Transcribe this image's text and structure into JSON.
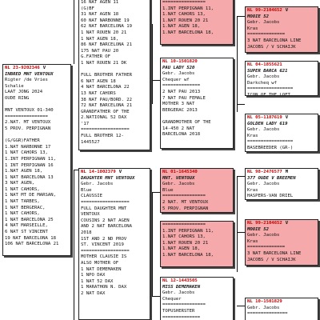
{
  "subject": {
    "ring": "NL  23-9202346 V",
    "name": "INBRED MNT VENTOUX",
    "lines": [
      "Rigter /de Vries",
      "Schalie",
      "LAAT JONG 2024",
      "OUDE RING",
      "",
      "MNT VENTOUX 01-340",
      "================",
      "2.NAT. MT VENTOUX",
      "5 PROV. PERPIGNAN",
      "",
      "(G/GGR)FATHER",
      "1.NAT NARBONNE 17",
      "1 NAT CAHORS 13,",
      "1.INT PERPIGNAN 11,",
      "1 INT PERPIGNAN 16",
      "1.NAT AGEN 18,",
      "1 NAT BARCELONA 13",
      "3 NAT AGEN,",
      "1 NAT CAHORS,",
      "1 NAT MT DE MARSAN,",
      "1 NAT TARBES,",
      "1 NAT BERGERAC,",
      "1 NAT CAHORS,",
      "1 NAT BARCELONA 25",
      "4 NAT MARSEILLE,",
      "6 NAT ST VINCENT",
      "19 NAT BARCELONA 18",
      "106 NAT BARCELONA 21"
    ]
  },
  "sire_partial": {
    "lines": [
      "16 NAT AGEN 11",
      "(G)BF",
      "31 NAT AGEN 18",
      "60 NAT NARBONNE 19",
      "62 NAT BARCELONA 19",
      "1 NAT ROUEN 20 21",
      "1 NAT AGEN 18,",
      "86 NAT BARCELONA 21",
      "175 NAT PAU 20",
      "G.FATHER OF",
      "1 NAT ROUEN 21 DK",
      "",
      "FULL BROTHER FATHER",
      "6 NAT AGEN 18",
      "4 NAT BARCELONA 22",
      "13 NAT CAHORS",
      "38 NAT PAU/BORD. 22",
      "72 NAT BARCELONA 21",
      "GRANDFATHER OF THE",
      "2.NATIONAL 52 DAX",
      "'17",
      "==================",
      "FULL BROTHER 12-",
      "1445527"
    ]
  },
  "dam": {
    "ring": "NL  14-1802379 V",
    "name": "DAUGHTER MNT VENTOUX",
    "lines": [
      "Gebr. Jacobs",
      "Blue",
      "CLAUSSIE",
      "==================",
      "FULL DAUGHTER MNT",
      "VENTOUX",
      "COUSINS 2 NAT AGEN",
      "AND 2 NAT BARCELONA",
      "2018",
      "1ST AND 2 ND PROV",
      "ST. VINCENT 2019",
      "==================",
      "MOTHER CLAUSIE IS",
      "ALSO MOTHER OF",
      "1 NAT DEMEMAKEN",
      "1 NPO DAX",
      "1 NAT 52 DAX",
      "1 MARATHON N. DAX",
      "2 NAT DAX"
    ]
  },
  "gen3_top": {
    "lines": [
      "================",
      "1.INT PERPIGNAN 11,",
      "1.NAT CAHORS 13,",
      "1.NAT ROUEN 20 21",
      "1.NAT AGEN 18,",
      "1.NAT BARCELONA 18,"
    ]
  },
  "gen3_b": {
    "ring": "NL  10-1501820",
    "name": "PAU LADY 520",
    "lines": [
      "Gebr. Jacobs",
      "Chequer wf",
      "==============",
      "2 NAT PAU 2013",
      "7 NAT PAU FEMALE",
      "MOTHER 3 NAT",
      "BERGERAC 2013",
      "",
      "GRANDMOTHER OF THE",
      "14-450 2 NAT",
      "BARCELONA 2018"
    ]
  },
  "gen3_c": {
    "ring": "NL  01-1645340",
    "name": "MNT. VENTOUX",
    "lines": [
      "Gebr. Jacobs",
      "Blue",
      "================",
      "2 NAT. MT VENTOUX",
      "5 PROV. PERPIGNAN"
    ]
  },
  "gen3_c2": {
    "lines": [
      "================",
      "1.INT PERPIGNAN 11,",
      "1.NAT CAHORS 13,",
      "1.NAT ROUEN 20 21",
      "1.NAT AGEN 18,",
      "1.NAT BARCELONA 18,"
    ]
  },
  "gen3_d": {
    "ring": "NL  12-1443505",
    "name": "MISS DEMEMAKEN",
    "lines": [
      "Gebr. Jacobs",
      "Chequer",
      "================",
      "TOPUSHERSTER",
      "=============="
    ]
  },
  "gen4_a": {
    "ring": "NL  99-2104652 V",
    "name": "MOOIE 52",
    "lines": [
      "Gebr. Jacobs",
      "Kras",
      "==============",
      "3 NAT BARCELONA LINE",
      "JACOBS / V SCHAIJK"
    ]
  },
  "gen4_b": {
    "ring": "NL  04-1855621",
    "name": "SUPER BARCA 621",
    "lines": [
      "Gebr. Jacobs",
      "Darkcheq wf",
      "=================",
      "ICON OF THE LOFT"
    ]
  },
  "gen4_c": {
    "ring": "NL  05-1187619 V",
    "name": "GOLDEN LADY 619",
    "lines": [
      "Gebr. Jacobs",
      "Kras",
      "=================",
      "BASEBREEDER (GR-)"
    ]
  },
  "gen4_d": {
    "ring": "NL  98-2476577 M",
    "name": "377 OUDE V BREEMEN",
    "lines": [
      "Gebr. Jacobs",
      "Kras",
      "HASPERS-VAN DRIEL"
    ]
  },
  "gen4_e": {
    "ring": "NL  99-2104652 V",
    "name": "MOOIE 52",
    "lines": [
      "Gebr. Jacobs",
      "Kras",
      "==============",
      "3 NAT BARCELONA LINE",
      "JACOBS / V SCHAIJK"
    ]
  },
  "gen4_f": {
    "ring": "NL  10-1501829",
    "name": "",
    "lines": [
      "Gebr. Jacobs",
      "==============="
    ]
  }
}
